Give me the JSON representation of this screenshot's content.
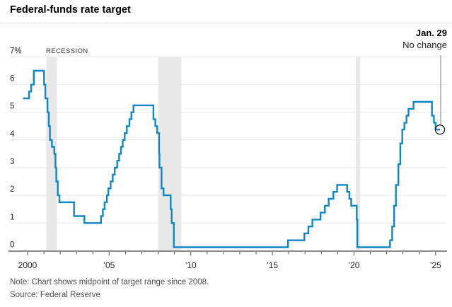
{
  "header": {
    "title": "Federal-funds rate target"
  },
  "annotation": {
    "date": "Jan. 29",
    "text": "No change"
  },
  "footer": {
    "note": "Note: Chart shows midpoint of target range since 2008.",
    "source": "Source: Federal Reserve"
  },
  "colors": {
    "line": "#0f86c6",
    "recession_band": "#e8e8e8",
    "gridline": "#e6e6e6",
    "axis": "#8a8a8a",
    "tick": "#4a4a4a",
    "axis_text": "#222222",
    "pointer": "#8f8f8f",
    "marker_circle": "#1a1a1a"
  },
  "chart_data": {
    "type": "line",
    "style": "step-after",
    "title": "Federal-funds rate target",
    "xlabel": "",
    "ylabel": "percent",
    "xlim": [
      1999.7,
      2025.95
    ],
    "ylim": [
      0,
      7
    ],
    "grid": true,
    "recession_label": "RECESSION",
    "recessions": [
      [
        2001.15,
        2001.8
      ],
      [
        2008.0,
        2009.42
      ],
      [
        2020.12,
        2020.38
      ]
    ],
    "y_ticks": [
      {
        "v": 7,
        "label": "7%"
      },
      {
        "v": 6,
        "label": "6"
      },
      {
        "v": 5,
        "label": "5"
      },
      {
        "v": 4,
        "label": "4"
      },
      {
        "v": 3,
        "label": "3"
      },
      {
        "v": 2,
        "label": "2"
      },
      {
        "v": 1,
        "label": "1"
      },
      {
        "v": 0,
        "label": "0"
      }
    ],
    "x_ticks": [
      {
        "year": 2000,
        "label": "2000"
      },
      {
        "year": 2005,
        "label": "’05"
      },
      {
        "year": 2010,
        "label": "’10"
      },
      {
        "year": 2015,
        "label": "’15"
      },
      {
        "year": 2020,
        "label": "’20"
      },
      {
        "year": 2025,
        "label": "’25"
      }
    ],
    "minor_tick_years": {
      "start": 2000,
      "end": 2025,
      "step": 1
    },
    "series": [
      {
        "name": "Federal-funds rate target (midpoint of range since 2008)",
        "points": [
          [
            1999.72,
            5.5
          ],
          [
            2000.09,
            5.75
          ],
          [
            2000.22,
            6
          ],
          [
            2000.38,
            6.5
          ],
          [
            2001.01,
            6
          ],
          [
            2001.09,
            5.5
          ],
          [
            2001.22,
            5
          ],
          [
            2001.3,
            4.5
          ],
          [
            2001.37,
            4
          ],
          [
            2001.49,
            3.75
          ],
          [
            2001.64,
            3.5
          ],
          [
            2001.71,
            3
          ],
          [
            2001.76,
            2.5
          ],
          [
            2001.85,
            2
          ],
          [
            2001.95,
            1.75
          ],
          [
            2002.85,
            1.25
          ],
          [
            2003.48,
            1
          ],
          [
            2004.5,
            1.25
          ],
          [
            2004.61,
            1.5
          ],
          [
            2004.72,
            1.75
          ],
          [
            2004.86,
            2
          ],
          [
            2004.95,
            2.25
          ],
          [
            2005.09,
            2.5
          ],
          [
            2005.22,
            2.75
          ],
          [
            2005.34,
            3
          ],
          [
            2005.49,
            3.25
          ],
          [
            2005.61,
            3.5
          ],
          [
            2005.72,
            3.75
          ],
          [
            2005.83,
            4
          ],
          [
            2005.95,
            4.25
          ],
          [
            2006.08,
            4.5
          ],
          [
            2006.24,
            4.75
          ],
          [
            2006.36,
            5
          ],
          [
            2006.49,
            5.25
          ],
          [
            2007.71,
            4.75
          ],
          [
            2007.83,
            4.5
          ],
          [
            2007.94,
            4.25
          ],
          [
            2008.06,
            3.5
          ],
          [
            2008.08,
            3
          ],
          [
            2008.21,
            2.25
          ],
          [
            2008.33,
            2
          ],
          [
            2008.77,
            1.5
          ],
          [
            2008.83,
            1
          ],
          [
            2008.96,
            0.125
          ],
          [
            2015.96,
            0.375
          ],
          [
            2016.96,
            0.625
          ],
          [
            2017.21,
            0.875
          ],
          [
            2017.45,
            1.125
          ],
          [
            2017.95,
            1.375
          ],
          [
            2018.22,
            1.625
          ],
          [
            2018.45,
            1.875
          ],
          [
            2018.74,
            2.125
          ],
          [
            2018.97,
            2.375
          ],
          [
            2019.58,
            2.125
          ],
          [
            2019.72,
            1.875
          ],
          [
            2019.83,
            1.625
          ],
          [
            2020.17,
            1.125
          ],
          [
            2020.21,
            0.125
          ],
          [
            2022.21,
            0.375
          ],
          [
            2022.34,
            0.875
          ],
          [
            2022.46,
            1.625
          ],
          [
            2022.57,
            2.375
          ],
          [
            2022.72,
            3.125
          ],
          [
            2022.84,
            3.875
          ],
          [
            2022.96,
            4.375
          ],
          [
            2023.09,
            4.625
          ],
          [
            2023.22,
            4.875
          ],
          [
            2023.34,
            5.125
          ],
          [
            2023.65,
            5.375
          ],
          [
            2024.78,
            4.875
          ],
          [
            2024.9,
            4.625
          ],
          [
            2025.0,
            4.375
          ],
          [
            2025.27,
            4.375
          ]
        ]
      }
    ],
    "end_marker": {
      "year": 2025.27,
      "value": 4.375
    }
  }
}
